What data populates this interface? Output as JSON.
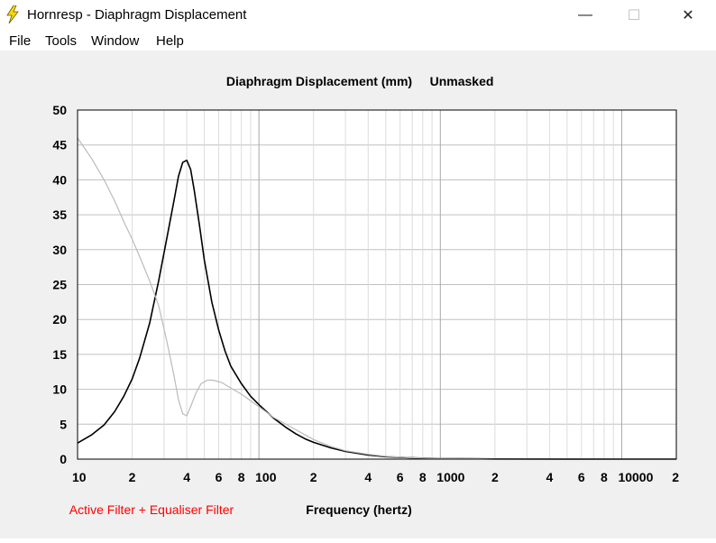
{
  "window": {
    "title": "Hornresp - Diaphragm Displacement",
    "icon": "lightning-icon",
    "minimize_glyph": "—",
    "maximize_glyph": "☐",
    "close_glyph": "✕"
  },
  "menu": {
    "items": [
      {
        "label": "File"
      },
      {
        "label": "Tools"
      },
      {
        "label": "Window"
      },
      {
        "label": "Help"
      }
    ]
  },
  "plot": {
    "title_main": "Diaphragm Displacement (mm)",
    "title_mask": "Unmasked",
    "filter_note": "Active Filter + Equaliser Filter",
    "filter_note_color": "#ff0000"
  },
  "chart_data": {
    "type": "line",
    "xlabel": "Frequency (hertz)",
    "x_scale": "log",
    "xlim": [
      10,
      20000
    ],
    "ylim": [
      0,
      50
    ],
    "grid": true,
    "y_ticks": [
      "0",
      "5",
      "10",
      "15",
      "20",
      "25",
      "30",
      "35",
      "40",
      "45",
      "50"
    ],
    "x_ticks": [
      {
        "v": 10,
        "label": "10"
      },
      {
        "v": 20,
        "label": "2"
      },
      {
        "v": 40,
        "label": "4"
      },
      {
        "v": 60,
        "label": "6"
      },
      {
        "v": 80,
        "label": "8"
      },
      {
        "v": 100,
        "label": "100"
      },
      {
        "v": 200,
        "label": "2"
      },
      {
        "v": 400,
        "label": "4"
      },
      {
        "v": 600,
        "label": "6"
      },
      {
        "v": 800,
        "label": "8"
      },
      {
        "v": 1000,
        "label": "1000"
      },
      {
        "v": 2000,
        "label": "2"
      },
      {
        "v": 4000,
        "label": "4"
      },
      {
        "v": 6000,
        "label": "6"
      },
      {
        "v": 8000,
        "label": "8"
      },
      {
        "v": 10000,
        "label": "10000"
      },
      {
        "v": 20000,
        "label": "2"
      }
    ],
    "series": [
      {
        "color": "#000000",
        "points": [
          [
            10,
            2.3
          ],
          [
            12,
            3.5
          ],
          [
            14,
            4.9
          ],
          [
            16,
            6.8
          ],
          [
            18,
            9.0
          ],
          [
            20,
            11.5
          ],
          [
            22,
            14.5
          ],
          [
            25,
            19.5
          ],
          [
            28,
            25.5
          ],
          [
            31,
            31.5
          ],
          [
            34,
            37.0
          ],
          [
            36,
            40.5
          ],
          [
            38,
            42.5
          ],
          [
            40,
            42.8
          ],
          [
            42,
            41.5
          ],
          [
            44,
            38.5
          ],
          [
            47,
            33.5
          ],
          [
            50,
            28.5
          ],
          [
            55,
            22.5
          ],
          [
            60,
            18.5
          ],
          [
            65,
            15.5
          ],
          [
            70,
            13.3
          ],
          [
            80,
            10.8
          ],
          [
            90,
            9.0
          ],
          [
            100,
            7.8
          ],
          [
            120,
            5.9
          ],
          [
            140,
            4.6
          ],
          [
            160,
            3.6
          ],
          [
            180,
            2.9
          ],
          [
            200,
            2.4
          ],
          [
            250,
            1.6
          ],
          [
            300,
            1.1
          ],
          [
            400,
            0.6
          ],
          [
            500,
            0.35
          ],
          [
            700,
            0.18
          ],
          [
            1000,
            0.09
          ],
          [
            2000,
            0.03
          ],
          [
            5000,
            0.01
          ],
          [
            10000,
            0.0
          ],
          [
            20000,
            0.0
          ]
        ]
      },
      {
        "color": "#bbbbbb",
        "points": [
          [
            10,
            46.0
          ],
          [
            12,
            43.0
          ],
          [
            14,
            40.0
          ],
          [
            16,
            37.0
          ],
          [
            18,
            34.0
          ],
          [
            20,
            31.5
          ],
          [
            22,
            29.0
          ],
          [
            25,
            25.5
          ],
          [
            28,
            22.0
          ],
          [
            31,
            17.0
          ],
          [
            34,
            12.0
          ],
          [
            36,
            8.5
          ],
          [
            38,
            6.5
          ],
          [
            40,
            6.2
          ],
          [
            42,
            7.5
          ],
          [
            45,
            9.5
          ],
          [
            48,
            10.8
          ],
          [
            52,
            11.3
          ],
          [
            56,
            11.3
          ],
          [
            62,
            11.0
          ],
          [
            70,
            10.2
          ],
          [
            80,
            9.3
          ],
          [
            100,
            7.5
          ],
          [
            120,
            6.0
          ],
          [
            150,
            4.6
          ],
          [
            200,
            2.8
          ],
          [
            250,
            1.8
          ],
          [
            300,
            1.2
          ],
          [
            400,
            0.7
          ],
          [
            500,
            0.4
          ],
          [
            700,
            0.2
          ],
          [
            1000,
            0.1
          ],
          [
            2000,
            0.03
          ],
          [
            5000,
            0.01
          ],
          [
            10000,
            0.0
          ],
          [
            20000,
            0.0
          ]
        ]
      }
    ]
  }
}
